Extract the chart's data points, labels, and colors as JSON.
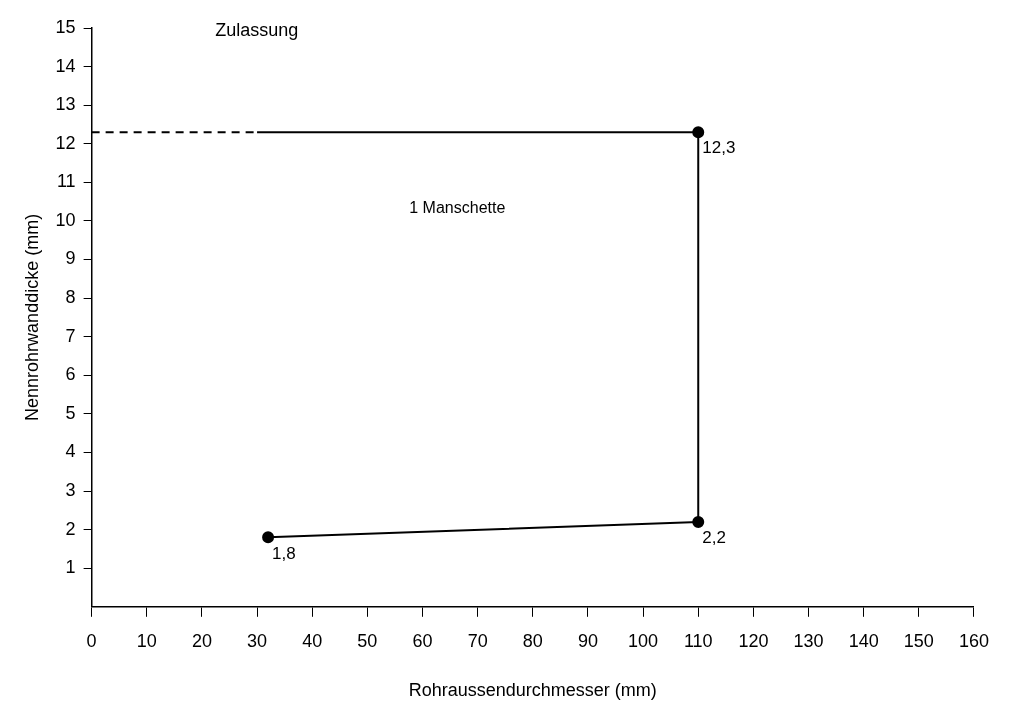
{
  "chart_data": {
    "type": "line",
    "xlabel": "Rohraussendurchmesser (mm)",
    "ylabel": "Nennrohrwanddicke (mm)",
    "xlim": [
      0,
      160
    ],
    "ylim": [
      0,
      15
    ],
    "xticks": [
      0,
      10,
      20,
      30,
      40,
      50,
      60,
      70,
      80,
      90,
      100,
      110,
      120,
      130,
      140,
      150,
      160
    ],
    "yticks": [
      1,
      2,
      3,
      4,
      5,
      6,
      7,
      8,
      9,
      10,
      11,
      12,
      13,
      14,
      15
    ],
    "series": [
      {
        "color": "#000000",
        "x": [
          32,
          110,
          110
        ],
        "values": [
          1.8,
          2.2,
          12.3
        ],
        "value_labels": [
          "1,8",
          "2,2",
          "12,3"
        ],
        "marker": "circle",
        "line_style": "solid"
      },
      {
        "color": "#000000",
        "x": [
          30,
          110
        ],
        "values": [
          12.3,
          12.3
        ],
        "marker": "none",
        "line_style": "solid"
      },
      {
        "color": "#000000",
        "x": [
          0,
          30
        ],
        "values": [
          12.3,
          12.3
        ],
        "marker": "none",
        "line_style": "dashed"
      }
    ],
    "annotations": [
      "Zulassung",
      "1 Manschette"
    ]
  }
}
